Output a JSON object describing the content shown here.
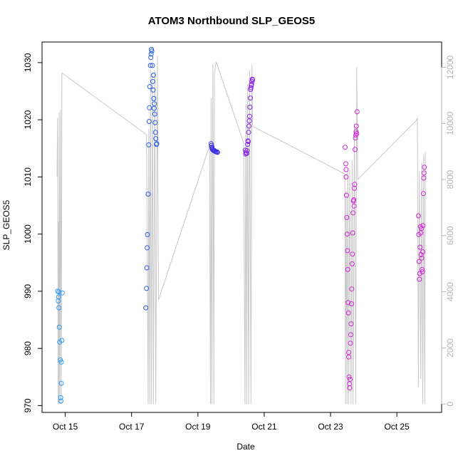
{
  "chart_data": {
    "type": "scatter",
    "title": "ATOM3 Northbound SLP_GEOS5",
    "xlabel": "Date",
    "ylabel": "SLP_GEOS5",
    "x_unit": "days (October)",
    "xlim": [
      14.3,
      26.35
    ],
    "ylim": [
      968.8,
      1033.6
    ],
    "x_ticks": [
      {
        "value": 15,
        "label": "Oct 15"
      },
      {
        "value": 17,
        "label": "Oct 17"
      },
      {
        "value": 19,
        "label": "Oct 19"
      },
      {
        "value": 21,
        "label": "Oct 21"
      },
      {
        "value": 23,
        "label": "Oct 23"
      },
      {
        "value": 25,
        "label": "Oct 25"
      }
    ],
    "y_ticks": [
      970,
      980,
      990,
      1000,
      1010,
      1020,
      1030
    ],
    "right_axis": {
      "color": "#b4b4b4",
      "ylim": [
        -300,
        12900
      ],
      "ticks": [
        0,
        2000,
        4000,
        6000,
        8000,
        10000,
        12000
      ]
    },
    "grid": false,
    "legend": "none",
    "series": [
      {
        "color": "#2a9df4",
        "points": [
          [
            14.77,
            990.0
          ],
          [
            14.79,
            988.3
          ],
          [
            14.8,
            989.0
          ],
          [
            14.81,
            987.1
          ],
          [
            14.81,
            989.9
          ],
          [
            14.82,
            983.7
          ],
          [
            14.83,
            981.1
          ],
          [
            14.85,
            978.0
          ],
          [
            14.86,
            971.4
          ],
          [
            14.87,
            970.8
          ],
          [
            14.88,
            977.6
          ],
          [
            14.88,
            973.9
          ],
          [
            14.9,
            981.4
          ],
          [
            14.91,
            989.7
          ]
        ]
      },
      {
        "color": "#2a5ee8",
        "points": [
          [
            17.43,
            987.1
          ],
          [
            17.45,
            990.5
          ],
          [
            17.46,
            994.1
          ],
          [
            17.47,
            997.6
          ],
          [
            17.48,
            999.9
          ],
          [
            17.5,
            1007.0
          ],
          [
            17.52,
            1015.6
          ],
          [
            17.53,
            1019.7
          ],
          [
            17.54,
            1022.1
          ],
          [
            17.55,
            1025.8
          ],
          [
            17.57,
            1029.5
          ],
          [
            17.58,
            1030.9
          ],
          [
            17.59,
            1031.5
          ],
          [
            17.6,
            1032.3
          ],
          [
            17.61,
            1032.0
          ],
          [
            17.63,
            1029.5
          ],
          [
            17.64,
            1026.7
          ],
          [
            17.65,
            1025.2
          ],
          [
            17.66,
            1027.8
          ],
          [
            17.67,
            1023.7
          ],
          [
            17.68,
            1022.0
          ],
          [
            17.69,
            1022.8
          ],
          [
            17.7,
            1021.0
          ],
          [
            17.71,
            1019.5
          ],
          [
            17.72,
            1017.8
          ],
          [
            17.73,
            1016.7
          ],
          [
            17.75,
            1015.7
          ],
          [
            17.76,
            1015.8
          ]
        ]
      },
      {
        "color": "#3a2ee0",
        "points": [
          [
            19.4,
            1015.8
          ],
          [
            19.41,
            1015.5
          ],
          [
            19.42,
            1015.2
          ],
          [
            19.43,
            1015.0
          ],
          [
            19.44,
            1014.8
          ],
          [
            19.46,
            1014.7
          ],
          [
            19.48,
            1014.6
          ],
          [
            19.5,
            1014.6
          ],
          [
            19.52,
            1014.5
          ],
          [
            19.54,
            1014.4
          ],
          [
            19.57,
            1014.4
          ],
          [
            19.59,
            1014.3
          ]
        ]
      },
      {
        "color": "#8a22e4",
        "points": [
          [
            20.43,
            1014.7
          ],
          [
            20.44,
            1014.0
          ],
          [
            20.45,
            1014.3
          ],
          [
            20.47,
            1014.1
          ],
          [
            20.48,
            1014.6
          ],
          [
            20.5,
            1015.7
          ],
          [
            20.51,
            1016.3
          ],
          [
            20.52,
            1016.2
          ],
          [
            20.53,
            1017.8
          ],
          [
            20.54,
            1018.9
          ],
          [
            20.55,
            1019.8
          ],
          [
            20.56,
            1020.6
          ],
          [
            20.57,
            1022.2
          ],
          [
            20.58,
            1023.8
          ],
          [
            20.59,
            1025.3
          ],
          [
            20.6,
            1025.6
          ],
          [
            20.61,
            1026.0
          ],
          [
            20.62,
            1026.2
          ],
          [
            20.63,
            1026.7
          ],
          [
            20.64,
            1027.1
          ],
          [
            20.65,
            1027.0
          ]
        ]
      },
      {
        "color": "#d326d6",
        "points": [
          [
            23.44,
            1015.2
          ],
          [
            23.46,
            1012.3
          ],
          [
            23.47,
            1011.3
          ],
          [
            23.47,
            1010.0
          ],
          [
            23.48,
            1006.8
          ],
          [
            23.49,
            1002.9
          ],
          [
            23.5,
            1000.0
          ],
          [
            23.51,
            997.1
          ],
          [
            23.52,
            993.8
          ],
          [
            23.53,
            988.0
          ],
          [
            23.54,
            986.2
          ],
          [
            23.55,
            979.3
          ],
          [
            23.55,
            978.5
          ],
          [
            23.56,
            975.0
          ],
          [
            23.57,
            973.8
          ],
          [
            23.58,
            973.1
          ],
          [
            23.59,
            974.6
          ],
          [
            23.6,
            980.9
          ],
          [
            23.61,
            982.4
          ],
          [
            23.62,
            984.3
          ],
          [
            23.63,
            987.8
          ],
          [
            23.64,
            990.4
          ],
          [
            23.65,
            994.8
          ],
          [
            23.66,
            996.5
          ],
          [
            23.67,
            1000.2
          ],
          [
            23.68,
            1003.7
          ],
          [
            23.69,
            1005.8
          ],
          [
            23.7,
            1006.0
          ],
          [
            23.71,
            1004.9
          ],
          [
            23.72,
            1008.0
          ],
          [
            23.73,
            1008.7
          ],
          [
            23.74,
            1014.8
          ],
          [
            23.75,
            1016.8
          ],
          [
            23.76,
            1017.3
          ],
          [
            23.77,
            1017.9
          ],
          [
            23.78,
            1018.9
          ],
          [
            23.79,
            1017.6
          ],
          [
            23.8,
            1021.4
          ]
        ]
      },
      {
        "color": "#d326d6",
        "points": [
          [
            25.65,
            1003.2
          ],
          [
            25.66,
            999.9
          ],
          [
            25.67,
            995.2
          ],
          [
            25.68,
            992.1
          ],
          [
            25.69,
            993.1
          ],
          [
            25.7,
            997.7
          ],
          [
            25.71,
            1001.3
          ],
          [
            25.72,
            1000.2
          ],
          [
            25.73,
            996.4
          ],
          [
            25.74,
            1001.0
          ],
          [
            25.75,
            995.8
          ],
          [
            25.76,
            993.8
          ],
          [
            25.77,
            993.4
          ],
          [
            25.78,
            996.9
          ],
          [
            25.79,
            1001.5
          ],
          [
            25.8,
            1007.1
          ],
          [
            25.81,
            1009.8
          ],
          [
            25.82,
            1010.7
          ],
          [
            25.83,
            1011.7
          ]
        ]
      }
    ],
    "altitude_trace": {
      "color": "#c8c8c8",
      "y_axis": "right",
      "points": [
        [
          14.75,
          8100
        ],
        [
          14.77,
          10200
        ],
        [
          14.79,
          0
        ],
        [
          14.8,
          6500
        ],
        [
          14.81,
          0
        ],
        [
          14.82,
          10400
        ],
        [
          14.84,
          0
        ],
        [
          14.86,
          10500
        ],
        [
          14.88,
          0
        ],
        [
          14.9,
          11800
        ],
        [
          17.45,
          9600
        ],
        [
          17.5,
          0
        ],
        [
          17.52,
          9800
        ],
        [
          17.55,
          0
        ],
        [
          17.57,
          11900
        ],
        [
          17.6,
          0
        ],
        [
          17.63,
          11800
        ],
        [
          17.66,
          0
        ],
        [
          17.7,
          11900
        ],
        [
          17.73,
          0
        ],
        [
          17.78,
          12400
        ],
        [
          17.81,
          3700
        ],
        [
          19.35,
          9200
        ],
        [
          19.38,
          0
        ],
        [
          19.4,
          10900
        ],
        [
          19.42,
          0
        ],
        [
          19.45,
          12100
        ],
        [
          19.48,
          0
        ],
        [
          19.5,
          11800
        ],
        [
          19.55,
          12200
        ],
        [
          20.38,
          9300
        ],
        [
          20.42,
          0
        ],
        [
          20.45,
          10700
        ],
        [
          20.47,
          0
        ],
        [
          20.5,
          11400
        ],
        [
          20.53,
          0
        ],
        [
          20.56,
          11900
        ],
        [
          20.6,
          0
        ],
        [
          20.63,
          12100
        ],
        [
          20.65,
          9900
        ],
        [
          23.43,
          8200
        ],
        [
          23.45,
          0
        ],
        [
          23.47,
          7600
        ],
        [
          23.5,
          0
        ],
        [
          23.52,
          8300
        ],
        [
          23.55,
          0
        ],
        [
          23.58,
          8400
        ],
        [
          23.62,
          0
        ],
        [
          23.65,
          8700
        ],
        [
          23.68,
          0
        ],
        [
          23.72,
          10000
        ],
        [
          23.76,
          0
        ],
        [
          23.79,
          12000
        ],
        [
          23.82,
          8000
        ],
        [
          25.58,
          10100
        ],
        [
          25.62,
          10200
        ],
        [
          25.65,
          600
        ],
        [
          25.68,
          8300
        ],
        [
          25.72,
          900
        ],
        [
          25.75,
          8600
        ],
        [
          25.78,
          0
        ],
        [
          25.81,
          8900
        ],
        [
          25.84,
          0
        ],
        [
          25.86,
          9000
        ]
      ]
    }
  }
}
